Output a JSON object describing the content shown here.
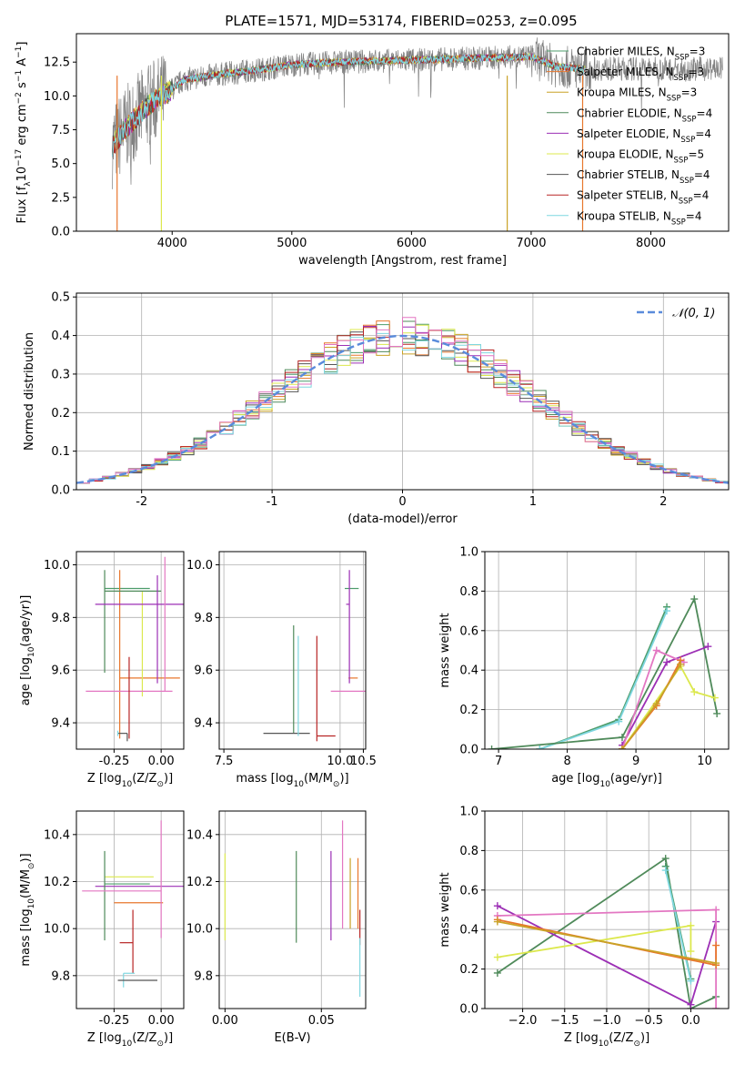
{
  "figure": {
    "title": "PLATE=1571, MJD=53174, FIBERID=0253, z=0.095"
  },
  "colors": {
    "Chabrier MILES": "#4d9c6b",
    "Salpeter MILES": "#e8772d",
    "Kroupa MILES": "#c9a227",
    "Chabrier ELODIE": "#4f8a5a",
    "Salpeter ELODIE": "#9c2fb5",
    "Kroupa ELODIE": "#dce84d",
    "Chabrier STELIB": "#555555",
    "Salpeter STELIB": "#b82525",
    "Kroupa STELIB": "#7fd7e0",
    "pink": "#e377c2",
    "normal_line": "#5a8bdb",
    "data_spectrum": "#808080"
  },
  "chart_data": [
    {
      "id": "spectrum",
      "type": "line",
      "title": "PLATE=1571, MJD=53174, FIBERID=0253, z=0.095",
      "xlabel": "wavelength [Angstrom, rest frame]",
      "ylabel_parts": [
        "Flux [f",
        "λ",
        "10",
        "−17",
        " erg cm",
        "−2",
        " s",
        "−1",
        " A",
        "−1",
        "]"
      ],
      "xlim": [
        3200,
        8650
      ],
      "ylim": [
        0,
        14.6
      ],
      "xticks": [
        4000,
        5000,
        6000,
        7000,
        8000
      ],
      "yticks": [
        0.0,
        2.5,
        5.0,
        7.5,
        10.0,
        12.5
      ],
      "continuum_x": [
        3500,
        3600,
        3800,
        4000,
        4100,
        4400,
        4700,
        5000,
        5400,
        5800,
        6200,
        6600,
        7000,
        7200,
        7400
      ],
      "continuum_y": [
        6.3,
        7.5,
        9.3,
        10.5,
        11.2,
        11.6,
        11.9,
        12.3,
        12.5,
        12.6,
        12.7,
        12.8,
        12.9,
        12.2,
        12.0
      ],
      "legend": {
        "position": "upper right",
        "entries": [
          {
            "series": "Chabrier MILES",
            "prefix": "Chabrier MILES, N",
            "sub": "SSP",
            "suffix": "=3"
          },
          {
            "series": "Salpeter MILES",
            "prefix": "Salpeter MILES, N",
            "sub": "SSP",
            "suffix": "=3"
          },
          {
            "series": "Kroupa MILES",
            "prefix": "Kroupa MILES, N",
            "sub": "SSP",
            "suffix": "=3"
          },
          {
            "series": "Chabrier ELODIE",
            "prefix": "Chabrier ELODIE, N",
            "sub": "SSP",
            "suffix": "=4"
          },
          {
            "series": "Salpeter ELODIE",
            "prefix": "Salpeter ELODIE, N",
            "sub": "SSP",
            "suffix": "=4"
          },
          {
            "series": "Kroupa ELODIE",
            "prefix": "Kroupa ELODIE, N",
            "sub": "SSP",
            "suffix": "=5"
          },
          {
            "series": "Chabrier STELIB",
            "prefix": "Chabrier STELIB, N",
            "sub": "SSP",
            "suffix": "=4"
          },
          {
            "series": "Salpeter STELIB",
            "prefix": "Salpeter STELIB, N",
            "sub": "SSP",
            "suffix": "=4"
          },
          {
            "series": "Kroupa STELIB",
            "prefix": "Kroupa STELIB, N",
            "sub": "SSP",
            "suffix": "=4"
          }
        ]
      }
    },
    {
      "id": "residuals",
      "type": "area",
      "xlabel": "(data-model)/error",
      "ylabel": "Normed distribution",
      "xlim": [
        -2.5,
        2.5
      ],
      "ylim": [
        0,
        0.51
      ],
      "xticks": [
        -2,
        -1,
        0,
        1,
        2
      ],
      "yticks": [
        0.0,
        0.1,
        0.2,
        0.3,
        0.4,
        0.5
      ],
      "grid": true,
      "bin_width": 0.1,
      "legend": {
        "position": "upper right",
        "label": "𝒩(0, 1)"
      }
    },
    {
      "id": "age_vs_Z",
      "type": "scatter",
      "xlabel_parts": [
        "Z [log",
        "10",
        "(Z/Z",
        "⊙",
        ")]"
      ],
      "ylabel_parts": [
        "age  [log",
        "10",
        "(age/yr)]"
      ],
      "xlim": [
        -0.45,
        0.12
      ],
      "ylim": [
        9.3,
        10.05
      ],
      "xticks": [
        "-0.25",
        "0.00"
      ],
      "xtick_values": [
        -0.25,
        0.0
      ],
      "yticks": [
        "9.4",
        "9.6",
        "9.8",
        "10.0"
      ],
      "ytick_values": [
        9.4,
        9.6,
        9.8,
        10.0
      ],
      "grid": true,
      "points": [
        {
          "series": "Chabrier MILES",
          "x": -0.08,
          "y": 9.91,
          "xerr": [
            0.22,
            0.02
          ],
          "yerr": [
            0.0,
            0.0
          ]
        },
        {
          "series": "Salpeter MILES",
          "x": -0.22,
          "y": 9.57,
          "xerr": [
            0.0,
            0.32
          ],
          "yerr": [
            0.23,
            0.41
          ]
        },
        {
          "series": "Kroupa ELODIE",
          "x": -0.1,
          "y": 9.55,
          "xerr": [
            0.0,
            0.0
          ],
          "yerr": [
            0.05,
            0.35
          ]
        },
        {
          "series": "Chabrier ELODIE",
          "x": -0.3,
          "y": 9.9,
          "xerr": [
            0.0,
            0.3
          ],
          "yerr": [
            0.31,
            0.08
          ]
        },
        {
          "series": "Salpeter ELODIE",
          "x": -0.02,
          "y": 9.85,
          "xerr": [
            0.33,
            0.15
          ],
          "yerr": [
            0.3,
            0.11
          ]
        },
        {
          "series": "pink",
          "x": 0.02,
          "y": 9.52,
          "xerr": [
            0.42,
            0.04
          ],
          "yerr": [
            0.0,
            0.51
          ]
        },
        {
          "series": "Chabrier STELIB",
          "x": -0.18,
          "y": 9.36,
          "xerr": [
            0.05,
            0.0
          ],
          "yerr": [
            0.03,
            0.0
          ]
        },
        {
          "series": "Salpeter STELIB",
          "x": -0.17,
          "y": 9.35,
          "xerr": [
            0.0,
            0.0
          ],
          "yerr": [
            0.01,
            0.3
          ]
        },
        {
          "series": "Kroupa STELIB",
          "x": -0.23,
          "y": 9.37,
          "xerr": [
            0.0,
            0.0
          ],
          "yerr": [
            0.02,
            0.0
          ]
        }
      ]
    },
    {
      "id": "age_vs_mass",
      "type": "scatter",
      "xlabel_parts": [
        "mass [log",
        "10",
        "(M/M",
        "⊙",
        ")]"
      ],
      "xlim": [
        7.4,
        10.55
      ],
      "ylim": [
        9.3,
        10.05
      ],
      "xticks": [
        "7.5",
        "10.0",
        "10.5"
      ],
      "xtick_values": [
        7.5,
        10.0,
        10.5
      ],
      "yticks": [
        "9.4",
        "9.6",
        "9.8",
        "10.0"
      ],
      "ytick_values": [
        9.4,
        9.6,
        9.8,
        10.0
      ],
      "grid": true,
      "points": [
        {
          "series": "Chabrier MILES",
          "x": 10.2,
          "y": 9.91,
          "xerr": [
            0.1,
            0.2
          ],
          "yerr": [
            0.0,
            0.0
          ]
        },
        {
          "series": "Salpeter MILES",
          "x": 10.18,
          "y": 9.57,
          "xerr": [
            0.0,
            0.2
          ],
          "yerr": [
            0.0,
            0.0
          ]
        },
        {
          "series": "Chabrier ELODIE",
          "x": 9.0,
          "y": 9.77,
          "xerr": [
            0.0,
            0.0
          ],
          "yerr": [
            0.41,
            0.0
          ]
        },
        {
          "series": "Salpeter ELODIE",
          "x": 10.2,
          "y": 9.85,
          "xerr": [
            0.07,
            0.0
          ],
          "yerr": [
            0.3,
            0.13
          ]
        },
        {
          "series": "pink",
          "x": 10.3,
          "y": 9.52,
          "xerr": [
            0.5,
            0.4
          ],
          "yerr": [
            0.0,
            0.0
          ]
        },
        {
          "series": "Chabrier STELIB",
          "x": 9.35,
          "y": 9.36,
          "xerr": [
            1.0,
            0.0
          ],
          "yerr": [
            0.0,
            0.0
          ]
        },
        {
          "series": "Salpeter STELIB",
          "x": 9.5,
          "y": 9.35,
          "xerr": [
            0.0,
            0.4
          ],
          "yerr": [
            0.02,
            0.38
          ]
        },
        {
          "series": "Kroupa STELIB",
          "x": 9.1,
          "y": 9.42,
          "xerr": [
            0.0,
            0.0
          ],
          "yerr": [
            0.07,
            0.31
          ]
        }
      ]
    },
    {
      "id": "massweight_vs_age",
      "type": "line",
      "xlabel_parts": [
        "age  [log",
        "10",
        "(age/yr)]"
      ],
      "ylabel": "mass weight",
      "xlim": [
        6.8,
        10.35
      ],
      "ylim": [
        0,
        1.0
      ],
      "xticks": [
        7,
        8,
        9,
        10
      ],
      "yticks": [
        0.0,
        0.2,
        0.4,
        0.6,
        0.8,
        1.0
      ],
      "grid": true,
      "series": [
        {
          "series": "Chabrier MILES",
          "x": [
            7.6,
            8.75,
            9.45
          ],
          "y": [
            0.0,
            0.15,
            0.72
          ]
        },
        {
          "series": "Kroupa STELIB",
          "x": [
            7.6,
            8.75,
            9.45
          ],
          "y": [
            0.0,
            0.14,
            0.7
          ]
        },
        {
          "series": "Chabrier ELODIE",
          "x": [
            6.9,
            8.8,
            9.85,
            10.18
          ],
          "y": [
            0.0,
            0.06,
            0.76,
            0.18
          ]
        },
        {
          "series": "Salpeter ELODIE",
          "x": [
            8.8,
            9.45,
            10.05
          ],
          "y": [
            0.02,
            0.44,
            0.52
          ]
        },
        {
          "series": "Kroupa ELODIE",
          "x": [
            8.8,
            9.65,
            9.85,
            10.15
          ],
          "y": [
            0.0,
            0.42,
            0.29,
            0.26
          ]
        },
        {
          "series": "pink",
          "x": [
            8.8,
            9.3,
            9.7
          ],
          "y": [
            0.0,
            0.5,
            0.44
          ]
        },
        {
          "series": "Salpeter MILES",
          "x": [
            8.8,
            9.3,
            9.65
          ],
          "y": [
            0.0,
            0.22,
            0.45
          ]
        },
        {
          "series": "Kroupa MILES",
          "x": [
            8.8,
            9.3,
            9.65
          ],
          "y": [
            0.0,
            0.23,
            0.43
          ]
        }
      ]
    },
    {
      "id": "mass_vs_Z",
      "type": "scatter",
      "xlabel_parts": [
        "Z [log",
        "10",
        "(Z/Z",
        "⊙",
        ")]"
      ],
      "ylabel_parts": [
        "mass [log",
        "10",
        "(M/M",
        "⊙",
        ")]"
      ],
      "xlim": [
        -0.45,
        0.12
      ],
      "ylim": [
        9.66,
        10.5
      ],
      "xticks": [
        "-0.25",
        "0.00"
      ],
      "xtick_values": [
        -0.25,
        0.0
      ],
      "yticks": [
        "9.8",
        "10.0",
        "10.2",
        "10.4"
      ],
      "ytick_values": [
        9.8,
        10.0,
        10.2,
        10.4
      ],
      "grid": true,
      "points": [
        {
          "series": "Kroupa ELODIE",
          "x": -0.13,
          "y": 10.22,
          "xerr": [
            0.17,
            0.09
          ],
          "yerr": [
            0.0,
            0.0
          ]
        },
        {
          "series": "Salpeter ELODIE",
          "x": -0.02,
          "y": 10.18,
          "xerr": [
            0.33,
            0.15
          ],
          "yerr": [
            0.0,
            0.0
          ]
        },
        {
          "series": "Chabrier MILES",
          "x": -0.08,
          "y": 10.19,
          "xerr": [
            0.22,
            0.02
          ],
          "yerr": [
            0.0,
            0.0
          ]
        },
        {
          "series": "Salpeter MILES",
          "x": -0.1,
          "y": 10.11,
          "xerr": [
            0.15,
            0.11
          ],
          "yerr": [
            0.0,
            0.0
          ]
        },
        {
          "series": "Chabrier ELODIE",
          "x": -0.3,
          "y": 10.15,
          "xerr": [
            0.0,
            0.0
          ],
          "yerr": [
            0.2,
            0.18
          ]
        },
        {
          "series": "pink",
          "x": 0.0,
          "y": 10.16,
          "xerr": [
            0.42,
            0.0
          ],
          "yerr": [
            0.2,
            0.3
          ]
        },
        {
          "series": "Salpeter STELIB",
          "x": -0.15,
          "y": 9.94,
          "xerr": [
            0.07,
            0.0
          ],
          "yerr": [
            0.13,
            0.14
          ]
        },
        {
          "series": "Kroupa STELIB",
          "x": -0.2,
          "y": 9.81,
          "xerr": [
            0.0,
            0.06
          ],
          "yerr": [
            0.06,
            0.0
          ]
        },
        {
          "series": "Chabrier STELIB",
          "x": -0.18,
          "y": 9.78,
          "xerr": [
            0.05,
            0.16
          ],
          "yerr": [
            0.0,
            0.0
          ]
        }
      ]
    },
    {
      "id": "mass_vs_ebv",
      "type": "scatter",
      "xlabel": "E(B-V)",
      "xlim": [
        -0.003,
        0.073
      ],
      "ylim": [
        9.66,
        10.5
      ],
      "xticks": [
        "0.00",
        "0.05"
      ],
      "xtick_values": [
        0.0,
        0.05
      ],
      "yticks": [
        "9.8",
        "10.0",
        "10.2",
        "10.4"
      ],
      "ytick_values": [
        9.8,
        10.0,
        10.2,
        10.4
      ],
      "grid": true,
      "points": [
        {
          "series": "Kroupa ELODIE",
          "x": 0.0,
          "y": 10.12,
          "xerr": [
            0.0,
            0.0
          ],
          "yerr": [
            0.17,
            0.2
          ]
        },
        {
          "series": "Chabrier ELODIE",
          "x": 0.037,
          "y": 10.14,
          "xerr": [
            0.0,
            0.0
          ],
          "yerr": [
            0.2,
            0.19
          ]
        },
        {
          "series": "Salpeter ELODIE",
          "x": 0.055,
          "y": 10.15,
          "xerr": [
            0.0,
            0.0
          ],
          "yerr": [
            0.2,
            0.18
          ]
        },
        {
          "series": "pink",
          "x": 0.061,
          "y": 10.2,
          "xerr": [
            0.0,
            0.0
          ],
          "yerr": [
            0.2,
            0.26
          ]
        },
        {
          "series": "Kroupa MILES",
          "x": 0.065,
          "y": 10.13,
          "xerr": [
            0.0,
            0.0
          ],
          "yerr": [
            0.13,
            0.17
          ]
        },
        {
          "series": "Salpeter MILES",
          "x": 0.069,
          "y": 10.14,
          "xerr": [
            0.0,
            0.0
          ],
          "yerr": [
            0.14,
            0.16
          ]
        },
        {
          "series": "Salpeter STELIB",
          "x": 0.07,
          "y": 10.0,
          "xerr": [
            0.0,
            0.0
          ],
          "yerr": [
            0.07,
            0.08
          ]
        },
        {
          "series": "Kroupa STELIB",
          "x": 0.07,
          "y": 9.85,
          "xerr": [
            0.0,
            0.0
          ],
          "yerr": [
            0.14,
            0.11
          ]
        }
      ]
    },
    {
      "id": "massweight_vs_Z",
      "type": "line",
      "xlabel_parts": [
        "Z [log",
        "10",
        "(Z/Z",
        "⊙",
        ")]"
      ],
      "ylabel": "mass weight",
      "xlim": [
        -2.45,
        0.45
      ],
      "ylim": [
        0,
        1.0
      ],
      "xticks": [
        "−2.0",
        "−1.5",
        "−1.0",
        "−0.5",
        "0.0"
      ],
      "xtick_values": [
        -2.0,
        -1.5,
        -1.0,
        -0.5,
        0.0
      ],
      "yticks": [
        0.0,
        0.2,
        0.4,
        0.6,
        0.8,
        1.0
      ],
      "grid": true,
      "series": [
        {
          "series": "Chabrier ELODIE",
          "x": [
            -2.3,
            -0.3,
            0.0,
            0.3
          ],
          "y": [
            0.18,
            0.76,
            0.0,
            0.06
          ]
        },
        {
          "series": "Chabrier MILES",
          "x": [
            -0.3,
            0.0
          ],
          "y": [
            0.72,
            0.15
          ]
        },
        {
          "series": "Kroupa STELIB",
          "x": [
            -0.3,
            0.0
          ],
          "y": [
            0.7,
            0.14
          ]
        },
        {
          "series": "Salpeter ELODIE",
          "x": [
            -2.3,
            0.0,
            0.3
          ],
          "y": [
            0.52,
            0.02,
            0.44
          ]
        },
        {
          "series": "pink",
          "x": [
            -2.3,
            0.3,
            0.3
          ],
          "y": [
            0.47,
            0.5,
            0.0
          ]
        },
        {
          "series": "Kroupa ELODIE",
          "x": [
            -2.3,
            0.0,
            0.0
          ],
          "y": [
            0.26,
            0.42,
            0.29
          ]
        },
        {
          "series": "Salpeter MILES",
          "x": [
            -2.3,
            0.3,
            0.3
          ],
          "y": [
            0.45,
            0.22,
            0.32
          ]
        },
        {
          "series": "Kroupa MILES",
          "x": [
            -2.3,
            0.3
          ],
          "y": [
            0.44,
            0.23
          ]
        }
      ]
    }
  ]
}
